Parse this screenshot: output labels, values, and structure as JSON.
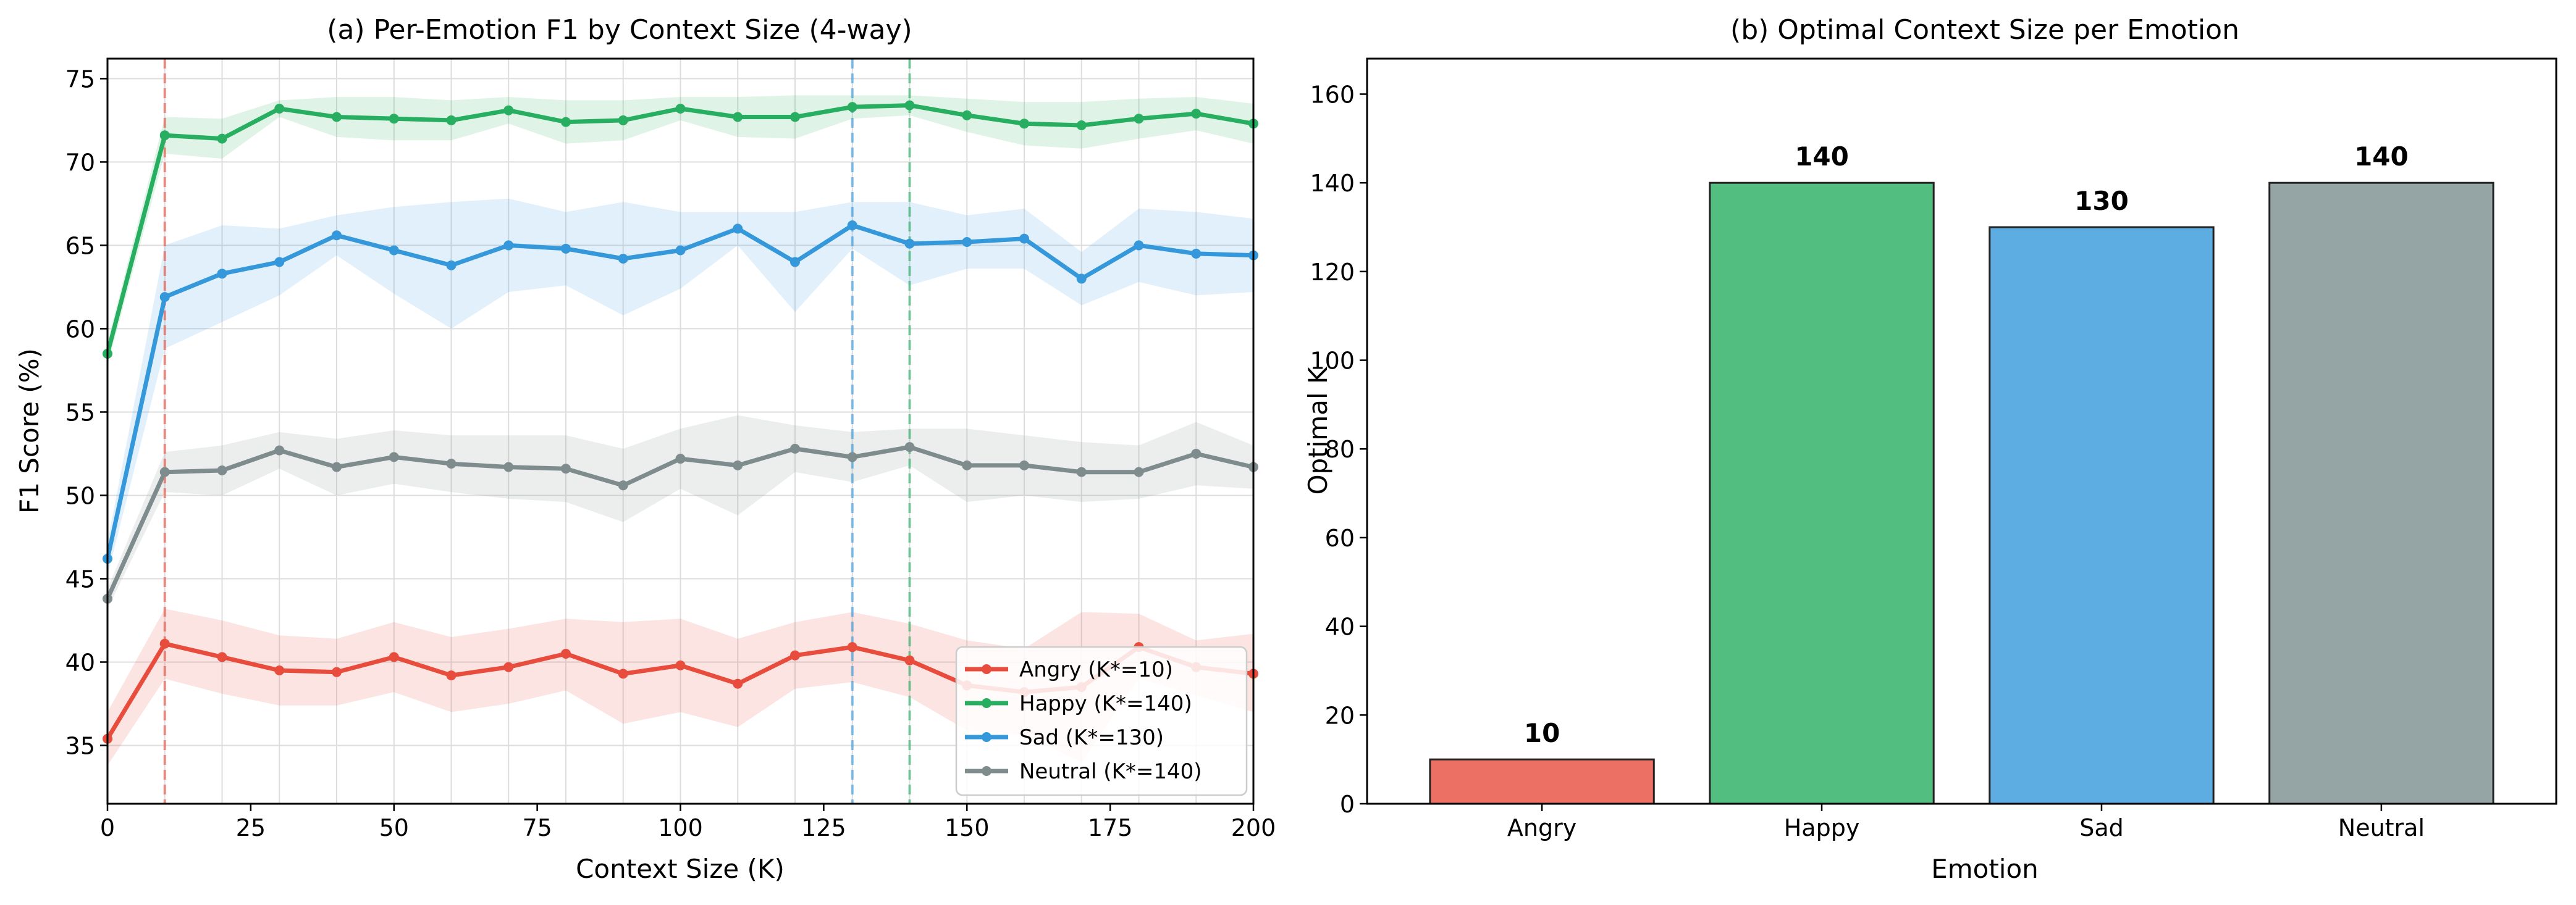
{
  "chart_data": [
    {
      "type": "line",
      "title": "(a) Per-Emotion F1 by Context Size (4-way)",
      "xlabel": "Context Size (K)",
      "ylabel": "F1 Score (%)",
      "xlim": [
        0,
        200
      ],
      "ylim": [
        31.5,
        76.2
      ],
      "xticks": [
        0,
        25,
        50,
        75,
        100,
        125,
        150,
        175,
        200
      ],
      "yticks": [
        35,
        40,
        45,
        50,
        55,
        60,
        65,
        70,
        75
      ],
      "grid": true,
      "legend_position": "lower-right",
      "x": [
        0,
        10,
        20,
        30,
        40,
        50,
        60,
        70,
        80,
        90,
        100,
        110,
        120,
        130,
        140,
        150,
        160,
        170,
        180,
        190,
        200
      ],
      "series": [
        {
          "name": "Angry (K*=10)",
          "color": "#e74c3c",
          "optimal_k": 10,
          "values": [
            35.4,
            41.1,
            40.3,
            39.5,
            39.4,
            40.3,
            39.2,
            39.7,
            40.5,
            39.3,
            39.8,
            38.7,
            40.4,
            40.9,
            40.1,
            38.6,
            38.2,
            38.5,
            40.9,
            39.7,
            39.3
          ],
          "band_upper": [
            37.0,
            43.2,
            42.5,
            41.6,
            41.4,
            42.4,
            41.5,
            42.0,
            42.6,
            42.4,
            42.6,
            41.4,
            42.4,
            43.0,
            42.3,
            41.3,
            40.8,
            43.0,
            42.9,
            41.3,
            41.7
          ],
          "band_lower": [
            33.8,
            39.0,
            38.1,
            37.4,
            37.4,
            38.2,
            37.0,
            37.5,
            38.3,
            36.3,
            37.0,
            36.1,
            38.4,
            38.8,
            37.9,
            35.9,
            35.6,
            34.0,
            39.0,
            38.0,
            37.0
          ]
        },
        {
          "name": "Happy (K*=140)",
          "color": "#27ae60",
          "optimal_k": 140,
          "values": [
            58.5,
            71.6,
            71.4,
            73.2,
            72.7,
            72.6,
            72.5,
            73.1,
            72.4,
            72.5,
            73.2,
            72.7,
            72.7,
            73.3,
            73.4,
            72.8,
            72.3,
            72.2,
            72.6,
            72.9,
            72.3
          ],
          "band_upper": [
            59.2,
            72.7,
            72.6,
            73.7,
            73.9,
            73.9,
            73.7,
            73.9,
            73.7,
            73.7,
            73.9,
            73.9,
            74.0,
            74.0,
            74.0,
            73.8,
            73.6,
            73.6,
            73.8,
            73.9,
            73.5
          ],
          "band_lower": [
            57.8,
            70.5,
            70.2,
            72.7,
            71.5,
            71.3,
            71.3,
            72.3,
            71.1,
            71.3,
            72.5,
            71.5,
            71.4,
            72.6,
            72.8,
            71.8,
            71.0,
            70.8,
            71.4,
            71.9,
            71.1
          ]
        },
        {
          "name": "Sad (K*=130)",
          "color": "#3498db",
          "optimal_k": 130,
          "values": [
            46.2,
            61.9,
            63.3,
            64.0,
            65.6,
            64.7,
            63.8,
            65.0,
            64.8,
            64.2,
            64.7,
            66.0,
            64.0,
            66.2,
            65.1,
            65.2,
            65.4,
            63.0,
            65.0,
            64.5,
            64.4
          ],
          "band_upper": [
            47.2,
            65.0,
            66.2,
            66.0,
            66.8,
            67.3,
            67.6,
            67.8,
            67.0,
            67.6,
            67.0,
            67.0,
            67.0,
            67.6,
            67.6,
            66.8,
            67.2,
            64.6,
            67.2,
            67.0,
            66.6
          ],
          "band_lower": [
            45.2,
            58.8,
            60.4,
            62.0,
            64.4,
            62.1,
            60.0,
            62.2,
            62.6,
            60.8,
            62.4,
            65.0,
            61.0,
            64.8,
            62.6,
            63.6,
            63.6,
            61.4,
            62.8,
            62.0,
            62.2
          ]
        },
        {
          "name": "Neutral (K*=140)",
          "color": "#7f8c8d",
          "optimal_k": 140,
          "values": [
            43.8,
            51.4,
            51.5,
            52.7,
            51.7,
            52.3,
            51.9,
            51.7,
            51.6,
            50.6,
            52.2,
            51.8,
            52.8,
            52.3,
            52.9,
            51.8,
            51.8,
            51.4,
            51.4,
            52.5,
            51.7
          ],
          "band_upper": [
            44.4,
            52.6,
            53.0,
            53.8,
            53.4,
            53.9,
            53.6,
            53.6,
            53.6,
            52.8,
            54.0,
            54.8,
            54.2,
            53.8,
            54.0,
            54.0,
            53.6,
            53.2,
            53.0,
            54.4,
            53.0
          ],
          "band_lower": [
            43.2,
            50.2,
            50.0,
            51.6,
            50.0,
            50.7,
            50.2,
            49.8,
            49.6,
            48.4,
            50.4,
            48.8,
            51.4,
            50.8,
            51.8,
            49.6,
            50.0,
            49.6,
            49.8,
            50.6,
            50.4
          ]
        }
      ],
      "vlines": [
        {
          "x": 10,
          "color": "#e74c3c"
        },
        {
          "x": 130,
          "color": "#3498db"
        },
        {
          "x": 140,
          "color": "#27ae60"
        }
      ]
    },
    {
      "type": "bar",
      "title": "(b) Optimal Context Size per Emotion",
      "xlabel": "Emotion",
      "ylabel": "Optimal K",
      "ylim": [
        0,
        168
      ],
      "yticks": [
        0,
        20,
        40,
        60,
        80,
        100,
        120,
        140,
        160
      ],
      "grid": false,
      "categories": [
        "Angry",
        "Happy",
        "Sad",
        "Neutral"
      ],
      "values": [
        10,
        140,
        130,
        140
      ],
      "colors": [
        "#ec7063",
        "#52be80",
        "#5dade2",
        "#95a5a6"
      ]
    }
  ]
}
